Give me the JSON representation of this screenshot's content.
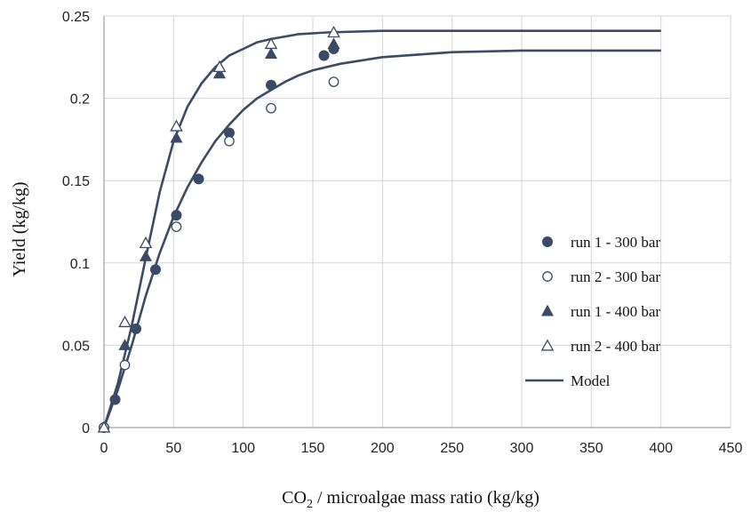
{
  "chart_data": {
    "type": "scatter",
    "xlabel_parts": [
      "CO",
      "2",
      " / microalgae mass ratio (kg/kg)"
    ],
    "ylabel": "Yield (kg/kg)",
    "xlim": [
      0,
      450
    ],
    "ylim": [
      0,
      0.25
    ],
    "xticks": [
      0,
      50,
      100,
      150,
      200,
      250,
      300,
      350,
      400,
      450
    ],
    "yticks": [
      0,
      0.05,
      0.1,
      0.15,
      0.2,
      0.25
    ],
    "ytick_labels": [
      "0",
      "0.05",
      "0.1",
      "0.15",
      "0.2",
      "0.25"
    ],
    "grid": true,
    "legend_position": "right",
    "series": [
      {
        "name": "run 1 - 300 bar",
        "marker": "filled-circle",
        "points": [
          [
            0,
            0
          ],
          [
            8,
            0.017
          ],
          [
            23,
            0.06
          ],
          [
            37,
            0.096
          ],
          [
            52,
            0.129
          ],
          [
            68,
            0.151
          ],
          [
            90,
            0.179
          ],
          [
            120,
            0.208
          ],
          [
            158,
            0.226
          ],
          [
            165,
            0.23
          ]
        ]
      },
      {
        "name": "run 2 - 300 bar",
        "marker": "open-circle",
        "points": [
          [
            0,
            0
          ],
          [
            15,
            0.038
          ],
          [
            52,
            0.122
          ],
          [
            90,
            0.174
          ],
          [
            120,
            0.194
          ],
          [
            165,
            0.21
          ]
        ]
      },
      {
        "name": "run 1 - 400 bar",
        "marker": "filled-triangle",
        "points": [
          [
            0,
            0
          ],
          [
            15,
            0.05
          ],
          [
            30,
            0.104
          ],
          [
            52,
            0.176
          ],
          [
            83,
            0.215
          ],
          [
            120,
            0.227
          ],
          [
            165,
            0.233
          ]
        ]
      },
      {
        "name": "run 2 - 400 bar",
        "marker": "open-triangle",
        "points": [
          [
            0,
            0
          ],
          [
            15,
            0.064
          ],
          [
            30,
            0.112
          ],
          [
            52,
            0.183
          ],
          [
            83,
            0.219
          ],
          [
            120,
            0.233
          ],
          [
            165,
            0.24
          ]
        ]
      }
    ],
    "model": {
      "name": "Model",
      "curves": [
        {
          "asymptote": 0.229,
          "shape": "sigmoid",
          "points": [
            [
              0,
              0
            ],
            [
              10,
              0.023
            ],
            [
              20,
              0.05
            ],
            [
              30,
              0.08
            ],
            [
              40,
              0.106
            ],
            [
              50,
              0.128
            ],
            [
              60,
              0.146
            ],
            [
              70,
              0.161
            ],
            [
              80,
              0.174
            ],
            [
              90,
              0.184
            ],
            [
              100,
              0.193
            ],
            [
              110,
              0.2
            ],
            [
              120,
              0.205
            ],
            [
              130,
              0.21
            ],
            [
              140,
              0.214
            ],
            [
              150,
              0.217
            ],
            [
              170,
              0.221
            ],
            [
              200,
              0.225
            ],
            [
              250,
              0.228
            ],
            [
              300,
              0.229
            ],
            [
              400,
              0.229
            ]
          ]
        },
        {
          "asymptote": 0.241,
          "shape": "sigmoid",
          "points": [
            [
              0,
              0
            ],
            [
              10,
              0.027
            ],
            [
              20,
              0.062
            ],
            [
              30,
              0.103
            ],
            [
              40,
              0.143
            ],
            [
              50,
              0.174
            ],
            [
              60,
              0.195
            ],
            [
              70,
              0.209
            ],
            [
              80,
              0.219
            ],
            [
              90,
              0.226
            ],
            [
              100,
              0.23
            ],
            [
              110,
              0.234
            ],
            [
              120,
              0.236
            ],
            [
              140,
              0.239
            ],
            [
              160,
              0.24
            ],
            [
              200,
              0.241
            ],
            [
              300,
              0.241
            ],
            [
              400,
              0.241
            ]
          ]
        }
      ]
    }
  },
  "style": {
    "marker_color": "#3b4a66",
    "line_color": "#3b4a66",
    "grid_color": "#d6d6d6",
    "axis_color": "#8c8c8c"
  }
}
